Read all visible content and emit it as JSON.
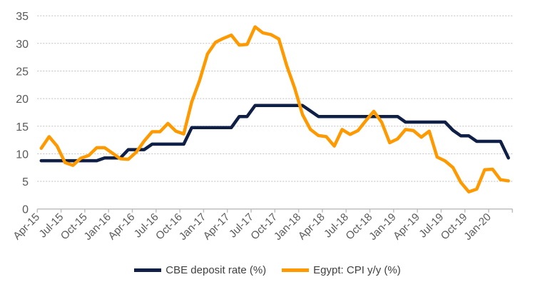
{
  "chart_data": {
    "type": "line",
    "title": "",
    "xlabel": "",
    "ylabel": "",
    "ylim": [
      0,
      35
    ],
    "yticks": [
      0,
      5,
      10,
      15,
      20,
      25,
      30,
      35
    ],
    "grid": true,
    "legend": "bottom",
    "x_tick_labels": [
      "Apr-15",
      "Jul-15",
      "Oct-15",
      "Jan-16",
      "Apr-16",
      "Jul-16",
      "Oct-16",
      "Jan-17",
      "Apr-17",
      "Jul-17",
      "Oct-17",
      "Jan-18",
      "Apr-18",
      "Jul-18",
      "Oct-18",
      "Jan-19",
      "Apr-19",
      "Jul-19",
      "Oct-19",
      "Jan-20"
    ],
    "x_start": "Apr-15",
    "x_end": "Mar-20",
    "series": [
      {
        "name": "CBE deposit rate (%)",
        "color": "#0f1f45",
        "values": [
          8.75,
          8.75,
          8.75,
          8.75,
          8.75,
          8.75,
          8.75,
          8.75,
          9.25,
          9.25,
          9.25,
          10.75,
          10.75,
          10.75,
          11.75,
          11.75,
          11.75,
          11.75,
          11.75,
          14.75,
          14.75,
          14.75,
          14.75,
          14.75,
          14.75,
          16.75,
          16.75,
          18.75,
          18.75,
          18.75,
          18.75,
          18.75,
          18.75,
          18.75,
          17.75,
          16.75,
          16.75,
          16.75,
          16.75,
          16.75,
          16.75,
          16.75,
          16.75,
          16.75,
          16.75,
          16.75,
          15.75,
          15.75,
          15.75,
          15.75,
          15.75,
          15.75,
          14.25,
          13.25,
          13.25,
          12.25,
          12.25,
          12.25,
          12.25,
          9.25
        ]
      },
      {
        "name": "Egypt: CPI y/y (%)",
        "color": "#ff9900",
        "values": [
          11.0,
          13.1,
          11.4,
          8.4,
          7.9,
          9.2,
          9.7,
          11.1,
          11.1,
          10.1,
          9.1,
          9.0,
          10.3,
          12.3,
          14.0,
          14.0,
          15.5,
          14.1,
          13.6,
          19.4,
          23.3,
          28.1,
          30.2,
          30.9,
          31.5,
          29.7,
          29.8,
          33.0,
          31.9,
          31.6,
          30.8,
          26.0,
          21.9,
          17.1,
          14.4,
          13.3,
          13.1,
          11.4,
          14.4,
          13.5,
          14.2,
          16.0,
          17.7,
          15.7,
          12.0,
          12.7,
          14.4,
          14.2,
          13.0,
          14.1,
          9.4,
          8.7,
          7.5,
          4.8,
          3.1,
          3.6,
          7.1,
          7.2,
          5.3,
          5.1
        ]
      }
    ]
  }
}
